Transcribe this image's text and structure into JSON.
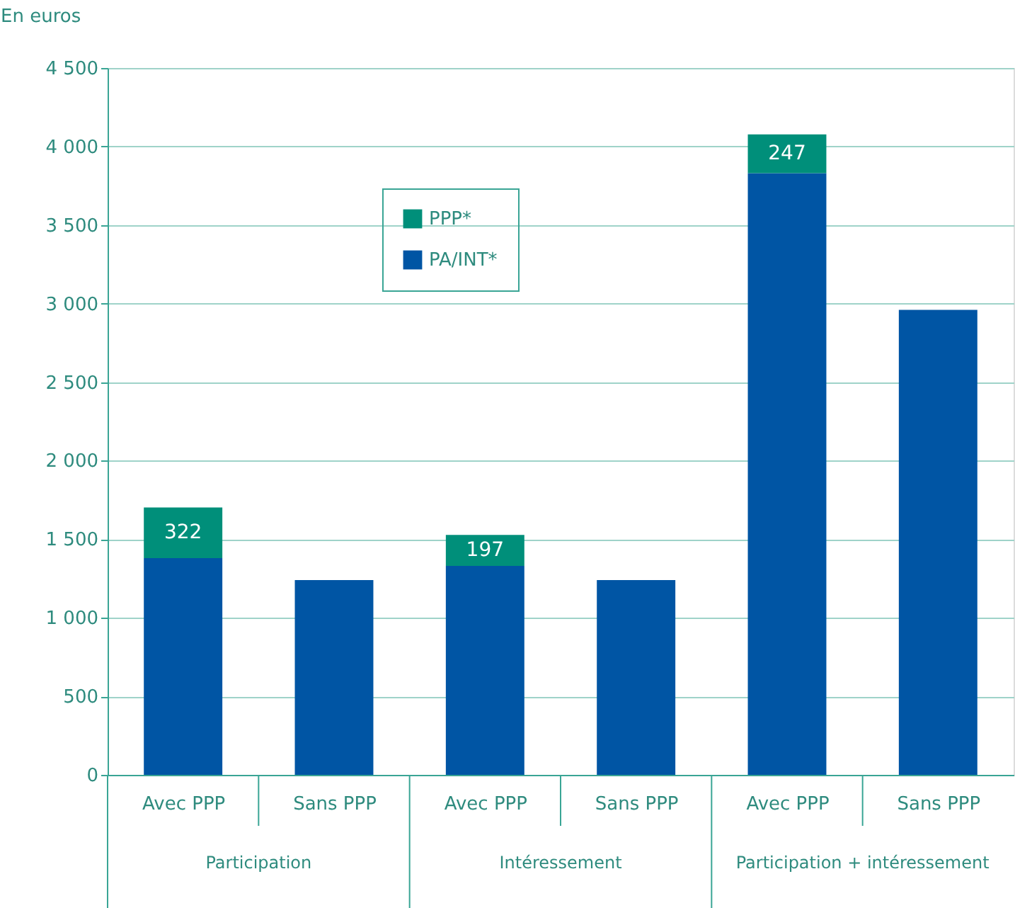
{
  "chart_data": {
    "type": "bar",
    "stacked": true,
    "ylabel": "En euros",
    "categories": [
      "Avec PPP",
      "Sans PPP",
      "Avec PPP",
      "Sans PPP",
      "Avec PPP",
      "Sans PPP"
    ],
    "series": [
      {
        "name": "PA/INT*",
        "color": "#0055a4",
        "values": [
          1380,
          1240,
          1330,
          1240,
          3830,
          2960
        ]
      },
      {
        "name": "PPP*",
        "color": "#008f7a",
        "values": [
          322,
          null,
          197,
          null,
          247,
          null
        ],
        "value_labels": [
          "322",
          null,
          "197",
          null,
          "247",
          null
        ]
      }
    ],
    "annotations": [
      "Participation",
      "Intéressement",
      "Participation + intéressement"
    ],
    "ylim": [
      0,
      4500
    ],
    "yticks": [
      0,
      500,
      {
        "value": 1000,
        "label": "1 000"
      },
      {
        "value": 1500,
        "label": "1 500"
      },
      {
        "value": 2000,
        "label": "2 000"
      },
      {
        "value": 2500,
        "label": "2 500"
      },
      {
        "value": 3000,
        "label": "3 000"
      },
      {
        "value": 3500,
        "label": "3 500"
      },
      {
        "value": 4000,
        "label": "4 000"
      },
      {
        "value": 4500,
        "label": "4 500"
      }
    ],
    "grid": "y",
    "legend": "top"
  }
}
